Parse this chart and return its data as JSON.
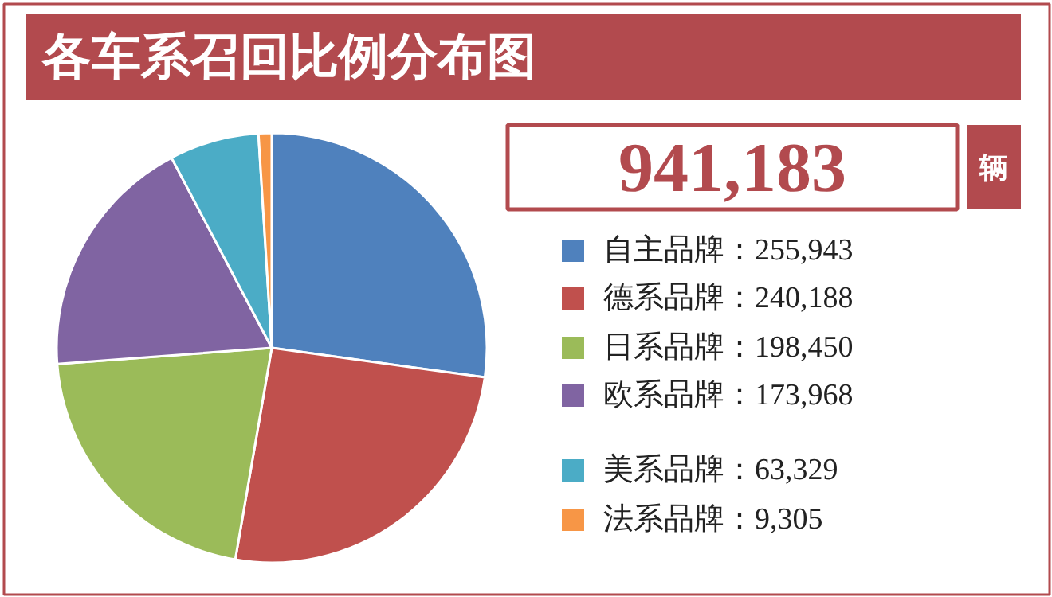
{
  "chart_data": {
    "type": "pie",
    "title": "各车系召回比例分布图",
    "categories": [
      "自主品牌：255,943",
      "德系品牌：240,188",
      "日系品牌：198,450",
      "欧系品牌：173,968",
      "美系品牌：63,329",
      "法系品牌：9,305"
    ],
    "values": [
      255943,
      240188,
      198450,
      173968,
      63329,
      9305
    ],
    "colors": [
      "#4f81bd",
      "#c0504d",
      "#9bbb59",
      "#8064a2",
      "#4bacc6",
      "#f79646"
    ],
    "legend": "right",
    "annotations": [
      "941,183",
      "辆"
    ]
  }
}
